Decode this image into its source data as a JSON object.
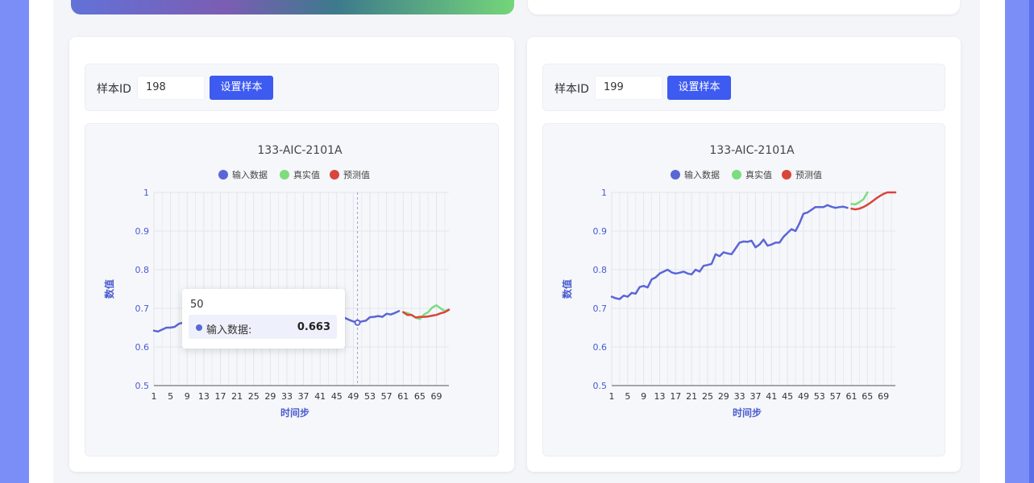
{
  "colors": {
    "input": "#5b66d6",
    "actual": "#7ddc7f",
    "predicted": "#d9453a",
    "button": "#3d5af1",
    "axis_label": "#4a5bd0"
  },
  "panels": [
    {
      "controls": {
        "label": "样本ID",
        "sample_id": "198",
        "button": "设置样本"
      },
      "chart_data": {
        "type": "line",
        "title": "133-AIC-2101A",
        "xlabel": "时间步",
        "ylabel": "数值",
        "ylim": [
          0.5,
          1
        ],
        "yticks": [
          "0.5",
          "0.6",
          "0.7",
          "0.8",
          "0.9",
          "1"
        ],
        "xlim": [
          1,
          72
        ],
        "xticks": [
          "1",
          "5",
          "9",
          "13",
          "17",
          "21",
          "25",
          "29",
          "33",
          "37",
          "41",
          "45",
          "49",
          "53",
          "57",
          "61",
          "65",
          "69"
        ],
        "legend": [
          "输入数据",
          "真实值",
          "预测值"
        ],
        "legend_position": "top",
        "grid": true,
        "series": [
          {
            "name": "输入数据",
            "color": "#5b66d6",
            "x": [
              1,
              2,
              3,
              4,
              5,
              6,
              7,
              8,
              9,
              10,
              12,
              15,
              20,
              25,
              30,
              35,
              40,
              43,
              45,
              47,
              48,
              49,
              50,
              51,
              52,
              53,
              54,
              55,
              56,
              57,
              58,
              59,
              60
            ],
            "y": [
              0.642,
              0.64,
              0.645,
              0.65,
              0.65,
              0.652,
              0.66,
              0.663,
              0.668,
              0.672,
              0.675,
              0.678,
              0.68,
              0.682,
              0.68,
              0.683,
              0.682,
              0.68,
              0.678,
              0.675,
              0.67,
              0.666,
              0.663,
              0.666,
              0.668,
              0.677,
              0.678,
              0.68,
              0.678,
              0.686,
              0.684,
              0.688,
              0.693
            ]
          },
          {
            "name": "真实值",
            "color": "#7ddc7f",
            "x": [
              61,
              62,
              63,
              64,
              65,
              66,
              67,
              68,
              69,
              70,
              71,
              72
            ],
            "y": [
              0.69,
              0.688,
              0.683,
              0.676,
              0.672,
              0.684,
              0.69,
              0.702,
              0.708,
              0.7,
              0.693,
              0.697
            ]
          },
          {
            "name": "预测值",
            "color": "#d9453a",
            "x": [
              61,
              62,
              63,
              64,
              65,
              66,
              67,
              68,
              69,
              70,
              71,
              72
            ],
            "y": [
              0.69,
              0.683,
              0.683,
              0.676,
              0.678,
              0.678,
              0.679,
              0.681,
              0.683,
              0.687,
              0.69,
              0.696
            ]
          }
        ],
        "hover_x": 50
      },
      "tooltip": {
        "title": "50",
        "series": "输入数据:",
        "value": "0.663"
      }
    },
    {
      "controls": {
        "label": "样本ID",
        "sample_id": "199",
        "button": "设置样本"
      },
      "chart_data": {
        "type": "line",
        "title": "133-AIC-2101A",
        "xlabel": "时间步",
        "ylabel": "数值",
        "ylim": [
          0.5,
          1
        ],
        "yticks": [
          "0.5",
          "0.6",
          "0.7",
          "0.8",
          "0.9",
          "1"
        ],
        "xlim": [
          1,
          72
        ],
        "xticks": [
          "1",
          "5",
          "9",
          "13",
          "17",
          "21",
          "25",
          "29",
          "33",
          "37",
          "41",
          "45",
          "49",
          "53",
          "57",
          "61",
          "65",
          "69"
        ],
        "legend": [
          "输入数据",
          "真实值",
          "预测值"
        ],
        "legend_position": "top",
        "grid": true,
        "series": [
          {
            "name": "输入数据",
            "color": "#5b66d6",
            "x": [
              1,
              2,
              3,
              4,
              5,
              6,
              7,
              8,
              9,
              10,
              11,
              12,
              13,
              14,
              15,
              16,
              17,
              18,
              19,
              20,
              21,
              22,
              23,
              24,
              25,
              26,
              27,
              28,
              29,
              30,
              31,
              32,
              33,
              34,
              35,
              36,
              37,
              38,
              39,
              40,
              41,
              42,
              43,
              44,
              45,
              46,
              47,
              48,
              49,
              50,
              51,
              52,
              53,
              54,
              55,
              56,
              57,
              58,
              59,
              60
            ],
            "y": [
              0.73,
              0.726,
              0.724,
              0.733,
              0.73,
              0.74,
              0.738,
              0.755,
              0.758,
              0.754,
              0.775,
              0.78,
              0.79,
              0.795,
              0.8,
              0.793,
              0.79,
              0.792,
              0.795,
              0.79,
              0.788,
              0.8,
              0.795,
              0.81,
              0.812,
              0.815,
              0.84,
              0.835,
              0.845,
              0.842,
              0.84,
              0.855,
              0.87,
              0.873,
              0.872,
              0.875,
              0.858,
              0.865,
              0.878,
              0.862,
              0.865,
              0.87,
              0.87,
              0.885,
              0.895,
              0.905,
              0.9,
              0.92,
              0.945,
              0.948,
              0.955,
              0.962,
              0.962,
              0.962,
              0.967,
              0.963,
              0.96,
              0.962,
              0.963,
              0.96
            ]
          },
          {
            "name": "真实值",
            "color": "#7ddc7f",
            "x": [
              61,
              62,
              63,
              64,
              65
            ],
            "y": [
              0.97,
              0.969,
              0.975,
              0.982,
              1.0
            ]
          },
          {
            "name": "预测值",
            "color": "#d9453a",
            "x": [
              61,
              62,
              63,
              64,
              65,
              66,
              67,
              68,
              69,
              70,
              71,
              72
            ],
            "y": [
              0.958,
              0.956,
              0.958,
              0.962,
              0.968,
              0.975,
              0.983,
              0.99,
              0.996,
              1.0,
              1.0,
              1.0
            ]
          }
        ]
      }
    }
  ]
}
